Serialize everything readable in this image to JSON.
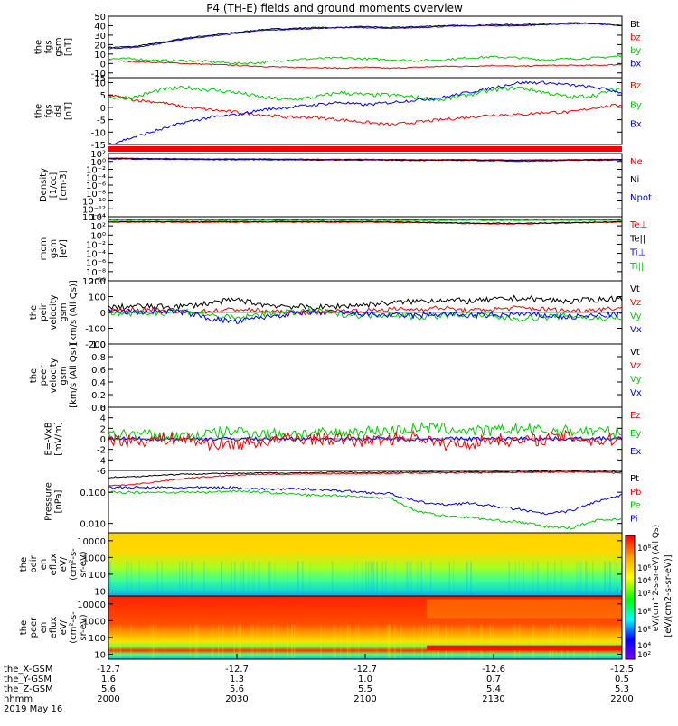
{
  "title": "P4 (TH-E) fields and ground moments overview",
  "footer": {
    "rows": [
      {
        "label": "the_X-GSM",
        "values": [
          "-12.7",
          "-12.7",
          "-12.7",
          "-12.6",
          "-12.5"
        ]
      },
      {
        "label": "the_Y-GSM",
        "values": [
          "1.6",
          "1.3",
          "1.0",
          "0.7",
          "0.5"
        ]
      },
      {
        "label": "the_Z-GSM",
        "values": [
          "5.6",
          "5.6",
          "5.5",
          "5.4",
          "5.3"
        ]
      },
      {
        "label": "hhmm",
        "values": [
          "2000",
          "2030",
          "2100",
          "2130",
          "2200"
        ]
      }
    ],
    "date": "2019 May 16"
  },
  "colorbar": {
    "label": "[eV/(cm2-s-sr-eV)]",
    "overlap_label": "eV/(cm^2-s-sr-eV) (All Qs)",
    "ticks_top": [
      "10⁸",
      "10⁶",
      "10⁴",
      "10²"
    ],
    "ticks_bottom": [
      "10⁸",
      "10⁶",
      "10⁴",
      "10²"
    ],
    "colors": [
      "#ff0000",
      "#ffa500",
      "#ffff00",
      "#00ff00",
      "#00ffff",
      "#0000ff",
      "#8000ff"
    ]
  },
  "chart_data": [
    {
      "type": "line",
      "ylabel": [
        "the",
        "fgs",
        "gsm",
        "[nT]"
      ],
      "yticks": [
        "50",
        "40",
        "30",
        "20",
        "10",
        "0",
        "-10",
        "-15"
      ],
      "ylim": [
        -15,
        50
      ],
      "legend": [
        {
          "name": "Bt",
          "color": "#000000"
        },
        {
          "name": "bz",
          "color": "#ff0000"
        },
        {
          "name": "by",
          "color": "#00cc00"
        },
        {
          "name": "bx",
          "color": "#0000ff"
        }
      ],
      "x": [
        0,
        6,
        12,
        18,
        24,
        30,
        36,
        42,
        48,
        54,
        60,
        66,
        72,
        78,
        84,
        90,
        96,
        102,
        108,
        114,
        120
      ],
      "series": [
        {
          "name": "Bt",
          "color": "#000000",
          "noise": 0.6,
          "values": [
            17,
            18,
            22,
            27,
            30,
            33,
            36,
            37,
            38,
            38,
            39,
            38,
            39,
            40,
            40,
            41,
            41,
            42,
            43,
            42,
            40
          ]
        },
        {
          "name": "bz",
          "color": "#ff0000",
          "noise": 0.6,
          "values": [
            3,
            2,
            1,
            0,
            -1,
            -2,
            -3,
            -4,
            -4,
            -5,
            -4,
            -5,
            -4,
            -3,
            -3,
            -2,
            -3,
            -2,
            -2,
            -2,
            -1
          ]
        },
        {
          "name": "by",
          "color": "#00cc00",
          "noise": 1.2,
          "values": [
            5,
            5,
            3,
            3,
            2,
            0,
            1,
            4,
            5,
            6,
            5,
            4,
            3,
            4,
            6,
            7,
            6,
            4,
            5,
            6,
            8
          ]
        },
        {
          "name": "bx",
          "color": "#0000ff",
          "noise": 0.5,
          "values": [
            16,
            17,
            21,
            26,
            29,
            32,
            35,
            36,
            37,
            38,
            38,
            37,
            38,
            39,
            40,
            40,
            40,
            41,
            42,
            42,
            40
          ]
        }
      ]
    },
    {
      "type": "line",
      "ylabel": [
        "the",
        "fgs",
        "dsl",
        "[nT]"
      ],
      "yticks": [
        "10",
        "5",
        "0",
        "-5",
        "-10",
        "-15"
      ],
      "ylim": [
        -15,
        12
      ],
      "legend": [
        {
          "name": "Bz",
          "color": "#ff0000"
        },
        {
          "name": "By",
          "color": "#00cc00"
        },
        {
          "name": "Bx",
          "color": "#0000ff"
        }
      ],
      "x": [
        0,
        6,
        12,
        18,
        24,
        30,
        36,
        42,
        48,
        54,
        60,
        66,
        72,
        78,
        84,
        90,
        96,
        102,
        108,
        114,
        120
      ],
      "series": [
        {
          "name": "Bz",
          "color": "#ff0000",
          "noise": 0.6,
          "values": [
            5,
            3,
            2,
            0,
            -1,
            -2,
            -3,
            -4,
            -4,
            -5,
            -6,
            -7,
            -6,
            -5,
            -4,
            -3,
            -3,
            -2,
            -2,
            0,
            1
          ]
        },
        {
          "name": "By",
          "color": "#00cc00",
          "noise": 0.8,
          "values": [
            4,
            4,
            7,
            8,
            7,
            6,
            4,
            3,
            4,
            6,
            5,
            5,
            4,
            3,
            5,
            7,
            8,
            6,
            4,
            5,
            8
          ]
        },
        {
          "name": "Bx",
          "color": "#0000ff",
          "noise": 0.6,
          "values": [
            -15,
            -12,
            -9,
            -6,
            -4,
            -3,
            -1,
            0,
            1,
            2,
            1,
            2,
            3,
            4,
            6,
            8,
            10,
            10,
            9,
            8,
            6
          ]
        }
      ]
    },
    {
      "type": "line",
      "ylabel": [
        "Density",
        "[1/cc]",
        "[cm-3]"
      ],
      "yticks": [
        "10²",
        "10⁰",
        "10⁻²",
        "10⁻⁴",
        "10⁻⁶",
        "10⁻⁸",
        "10⁻¹⁰",
        "10⁻¹²",
        "10⁻¹⁴"
      ],
      "ylim": [
        -14,
        2.5
      ],
      "scale": "log",
      "legend": [
        {
          "name": "Ne",
          "color": "#ff0000"
        },
        {
          "name": "Ni",
          "color": "#000000"
        },
        {
          "name": "Npot",
          "color": "#0000ff"
        }
      ],
      "x": [
        0,
        12,
        24,
        36,
        48,
        60,
        72,
        84,
        96,
        108,
        120
      ],
      "series": [
        {
          "name": "Ne",
          "color": "#ff0000",
          "noise": 0.08,
          "values": [
            1.3,
            1.2,
            1.1,
            1.1,
            1.0,
            1.0,
            0.9,
            0.9,
            0.8,
            0.9,
            1.0
          ]
        },
        {
          "name": "Ni",
          "color": "#000000",
          "noise": 0.08,
          "values": [
            1.2,
            1.1,
            1.0,
            1.0,
            0.9,
            0.9,
            0.8,
            0.8,
            0.7,
            0.8,
            0.9
          ]
        },
        {
          "name": "Npot",
          "color": "#0000ff",
          "noise": 0.1,
          "values": [
            1.1,
            1.0,
            0.9,
            0.9,
            0.8,
            0.8,
            0.7,
            0.7,
            0.5,
            0.7,
            0.8
          ]
        }
      ]
    },
    {
      "type": "line",
      "ylabel": [
        "mom",
        "gsm",
        "[eV]"
      ],
      "yticks": [
        "10⁴",
        "10²",
        "10⁰",
        "10⁻²",
        "10⁻⁴",
        "10⁻⁶",
        "10⁻⁸",
        "10⁻¹⁰"
      ],
      "ylim": [
        -10,
        4.2
      ],
      "scale": "log",
      "legend": [
        {
          "name": "Te⊥",
          "color": "#ff0000"
        },
        {
          "name": "Te||",
          "color": "#000000"
        },
        {
          "name": "Ti⊥",
          "color": "#0000ff"
        },
        {
          "name": "Ti||",
          "color": "#00cc00"
        }
      ],
      "x": [
        0,
        12,
        24,
        36,
        48,
        60,
        72,
        84,
        96,
        108,
        120
      ],
      "series": [
        {
          "name": "Te⊥",
          "color": "#ff0000",
          "noise": 0.1,
          "values": [
            3.0,
            3.0,
            3.0,
            3.0,
            3.0,
            3.0,
            2.9,
            2.7,
            2.6,
            2.8,
            3.0
          ]
        },
        {
          "name": "Te||",
          "color": "#000000",
          "noise": 0.1,
          "values": [
            3.1,
            3.1,
            3.1,
            3.1,
            3.1,
            3.1,
            3.0,
            2.8,
            2.7,
            2.9,
            3.1
          ]
        },
        {
          "name": "Ti⊥",
          "color": "#0000ff",
          "noise": 0.08,
          "values": [
            3.5,
            3.5,
            3.5,
            3.5,
            3.5,
            3.5,
            3.5,
            3.5,
            3.5,
            3.5,
            3.5
          ]
        },
        {
          "name": "Ti||",
          "color": "#00cc00",
          "noise": 0.08,
          "values": [
            3.4,
            3.4,
            3.4,
            3.4,
            3.4,
            3.4,
            3.4,
            3.4,
            3.4,
            3.4,
            3.4
          ]
        }
      ]
    },
    {
      "type": "line",
      "ylabel": [
        "the",
        "peir",
        "velocity",
        "gsm",
        "[km/s (All Qs)]"
      ],
      "yticks": [
        "200",
        "100",
        "0",
        "-100",
        "-200"
      ],
      "ylim": [
        -200,
        200
      ],
      "legend": [
        {
          "name": "Vt",
          "color": "#000000"
        },
        {
          "name": "Vz",
          "color": "#ff0000"
        },
        {
          "name": "Vy",
          "color": "#00cc00"
        },
        {
          "name": "Vx",
          "color": "#0000ff"
        }
      ],
      "x": [
        0,
        6,
        12,
        18,
        24,
        30,
        36,
        42,
        48,
        54,
        60,
        66,
        72,
        78,
        84,
        90,
        96,
        102,
        108,
        114,
        120
      ],
      "series": [
        {
          "name": "Vt",
          "color": "#000000",
          "noise": 18,
          "values": [
            30,
            40,
            35,
            40,
            60,
            80,
            50,
            40,
            30,
            40,
            50,
            60,
            70,
            80,
            70,
            80,
            90,
            80,
            70,
            80,
            90
          ]
        },
        {
          "name": "Vz",
          "color": "#ff0000",
          "noise": 15,
          "values": [
            10,
            20,
            10,
            0,
            10,
            20,
            10,
            0,
            0,
            10,
            10,
            20,
            20,
            30,
            10,
            20,
            30,
            20,
            10,
            20,
            30
          ]
        },
        {
          "name": "Vy",
          "color": "#00cc00",
          "noise": 20,
          "values": [
            0,
            -10,
            0,
            10,
            -20,
            -40,
            -10,
            0,
            10,
            -10,
            -20,
            -10,
            -30,
            -20,
            -10,
            -30,
            -40,
            -30,
            -20,
            -40,
            -30
          ]
        },
        {
          "name": "Vx",
          "color": "#0000ff",
          "noise": 18,
          "values": [
            10,
            0,
            10,
            0,
            -40,
            -60,
            -30,
            -10,
            0,
            0,
            -10,
            -20,
            -20,
            -10,
            -20,
            -20,
            -10,
            -20,
            -30,
            -20,
            -10
          ]
        }
      ]
    },
    {
      "type": "line",
      "ylabel": [
        "the",
        "peer",
        "velocity",
        "gsm",
        "[km/s (All Qs)]"
      ],
      "yticks": [
        "1.0",
        "0.8",
        "0.6",
        "0.4",
        "0.2",
        "0.0"
      ],
      "ylim": [
        0,
        1
      ],
      "legend": [
        {
          "name": "Vt",
          "color": "#000000"
        },
        {
          "name": "Vz",
          "color": "#ff0000"
        },
        {
          "name": "Vy",
          "color": "#00cc00"
        },
        {
          "name": "Vx",
          "color": "#0000ff"
        }
      ],
      "x": [],
      "series": []
    },
    {
      "type": "line",
      "ylabel": [
        "E=-VxB",
        "[mV/m]"
      ],
      "yticks": [
        "6",
        "4",
        "2",
        "0",
        "-2",
        "-4",
        "-6"
      ],
      "ylim": [
        -6,
        6
      ],
      "legend": [
        {
          "name": "Ez",
          "color": "#ff0000"
        },
        {
          "name": "Ey",
          "color": "#00cc00"
        },
        {
          "name": "Ex",
          "color": "#0000ff"
        }
      ],
      "x": [
        0,
        6,
        12,
        18,
        24,
        30,
        36,
        42,
        48,
        54,
        60,
        66,
        72,
        78,
        84,
        90,
        96,
        102,
        108,
        114,
        120
      ],
      "series": [
        {
          "name": "Ex",
          "color": "#0000ff",
          "noise": 0.4,
          "values": [
            0,
            0,
            0,
            0,
            0,
            0,
            0,
            0,
            0,
            0,
            0,
            0,
            0,
            0,
            0,
            0,
            0,
            0,
            0,
            0,
            0
          ]
        },
        {
          "name": "Ey",
          "color": "#00cc00",
          "noise": 1.1,
          "values": [
            0.5,
            1,
            0.5,
            0.5,
            1,
            1.5,
            1,
            1,
            1,
            1,
            1.5,
            1.5,
            2,
            2,
            1.5,
            1.5,
            2,
            1.5,
            1.5,
            1.5,
            1
          ]
        },
        {
          "name": "Ez",
          "color": "#ff0000",
          "noise": 1.2,
          "values": [
            0,
            -0.5,
            0,
            0,
            -1,
            -1,
            -0.5,
            0,
            0,
            0,
            -0.5,
            0,
            0.5,
            -1,
            -1,
            0,
            -0.5,
            0,
            0.5,
            -0.5,
            0
          ]
        }
      ]
    },
    {
      "type": "line",
      "ylabel": [
        "Pressure",
        "[nPa]"
      ],
      "yticks": [
        "0.100",
        "0.010"
      ],
      "ylim": [
        -2.3,
        -0.3
      ],
      "scale": "log",
      "legend": [
        {
          "name": "Pt",
          "color": "#000000"
        },
        {
          "name": "Pb",
          "color": "#ff0000"
        },
        {
          "name": "Pe",
          "color": "#00cc00"
        },
        {
          "name": "Pi",
          "color": "#0000ff"
        }
      ],
      "x": [
        0,
        6,
        12,
        18,
        24,
        30,
        36,
        42,
        48,
        54,
        60,
        66,
        72,
        78,
        84,
        90,
        96,
        102,
        108,
        114,
        120
      ],
      "series": [
        {
          "name": "Pt",
          "color": "#000000",
          "noise": 0.02,
          "values": [
            -0.52,
            -0.5,
            -0.45,
            -0.42,
            -0.4,
            -0.4,
            -0.38,
            -0.38,
            -0.37,
            -0.36,
            -0.36,
            -0.36,
            -0.35,
            -0.35,
            -0.35,
            -0.35,
            -0.34,
            -0.34,
            -0.34,
            -0.34,
            -0.34
          ]
        },
        {
          "name": "Pb",
          "color": "#ff0000",
          "noise": 0.02,
          "values": [
            -0.8,
            -0.75,
            -0.65,
            -0.55,
            -0.5,
            -0.45,
            -0.42,
            -0.42,
            -0.4,
            -0.4,
            -0.4,
            -0.4,
            -0.38,
            -0.38,
            -0.37,
            -0.37,
            -0.36,
            -0.36,
            -0.35,
            -0.35,
            -0.4
          ]
        },
        {
          "name": "Pe",
          "color": "#00cc00",
          "noise": 0.04,
          "values": [
            -1.0,
            -1.0,
            -1.0,
            -1.0,
            -1.0,
            -0.95,
            -1.0,
            -1.05,
            -1.1,
            -1.1,
            -1.15,
            -1.2,
            -1.6,
            -1.75,
            -1.8,
            -1.9,
            -1.95,
            -2.1,
            -2.15,
            -1.9,
            -1.85
          ]
        },
        {
          "name": "Pi",
          "color": "#0000ff",
          "noise": 0.04,
          "values": [
            -0.85,
            -0.85,
            -0.85,
            -0.85,
            -0.85,
            -0.85,
            -0.9,
            -0.9,
            -0.9,
            -0.95,
            -1.0,
            -1.05,
            -1.3,
            -1.4,
            -1.35,
            -1.45,
            -1.55,
            -1.7,
            -1.6,
            -1.3,
            -1.1
          ]
        }
      ]
    },
    {
      "type": "heatmap",
      "ylabel": [
        "the",
        "peir",
        "en",
        "eflux",
        "eV/",
        "(cm²-s-",
        "sr-eV)"
      ],
      "yticks": [
        "10000",
        "1000",
        "100",
        "10"
      ],
      "ylim": [
        5,
        30000
      ],
      "scale": "log"
    },
    {
      "type": "heatmap",
      "ylabel": [
        "the",
        "peer",
        "en",
        "eflux",
        "eV/",
        "(cm²-s-",
        "sr-eV)"
      ],
      "yticks": [
        "10000",
        "1000",
        "100",
        "10"
      ],
      "ylim": [
        5,
        30000
      ],
      "scale": "log"
    }
  ]
}
